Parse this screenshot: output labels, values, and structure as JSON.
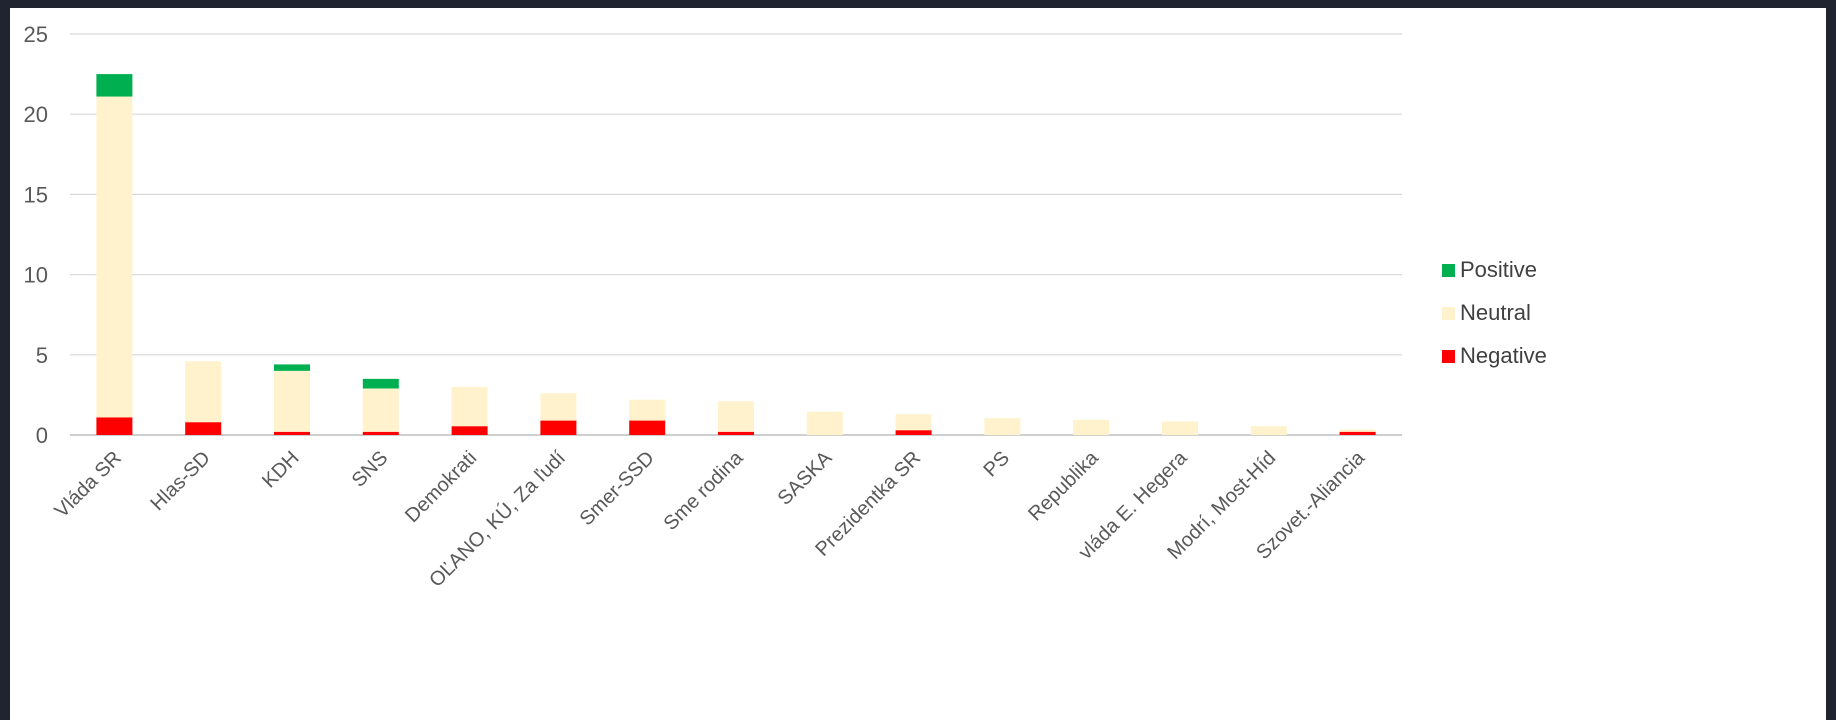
{
  "chart_data": {
    "type": "bar",
    "stacked": true,
    "categories": [
      "Vláda SR",
      "Hlas-SD",
      "KDH",
      "SNS",
      "Demokrati",
      "OĽANO, KÚ, Za ľudí",
      "Smer-SSD",
      "Sme rodina",
      "SASKA",
      "Prezidentka SR",
      "PS",
      "Republika",
      "vláda E. Hegera",
      "Modrí, Most-Híd",
      "Szovet.-Aliancia"
    ],
    "series": [
      {
        "name": "Negative",
        "color": "#ff0000",
        "values": [
          1.1,
          0.8,
          0.2,
          0.2,
          0.55,
          0.9,
          0.9,
          0.2,
          0,
          0.3,
          0,
          0,
          0,
          0,
          0.2
        ]
      },
      {
        "name": "Neutral",
        "color": "#fff2cc",
        "values": [
          20.0,
          3.8,
          3.8,
          2.7,
          2.45,
          1.7,
          1.3,
          1.9,
          1.45,
          1.0,
          1.05,
          0.95,
          0.85,
          0.55,
          0.15
        ]
      },
      {
        "name": "Positive",
        "color": "#00b050",
        "values": [
          1.4,
          0,
          0.4,
          0.6,
          0,
          0,
          0,
          0,
          0,
          0,
          0,
          0,
          0,
          0,
          0
        ]
      }
    ],
    "ylim": [
      0,
      25
    ],
    "yticks": [
      0,
      5,
      10,
      15,
      20,
      25
    ],
    "grid": true,
    "legend": {
      "position": "right",
      "order": [
        "Positive",
        "Neutral",
        "Negative"
      ]
    },
    "title": "",
    "xlabel": "",
    "ylabel": ""
  }
}
